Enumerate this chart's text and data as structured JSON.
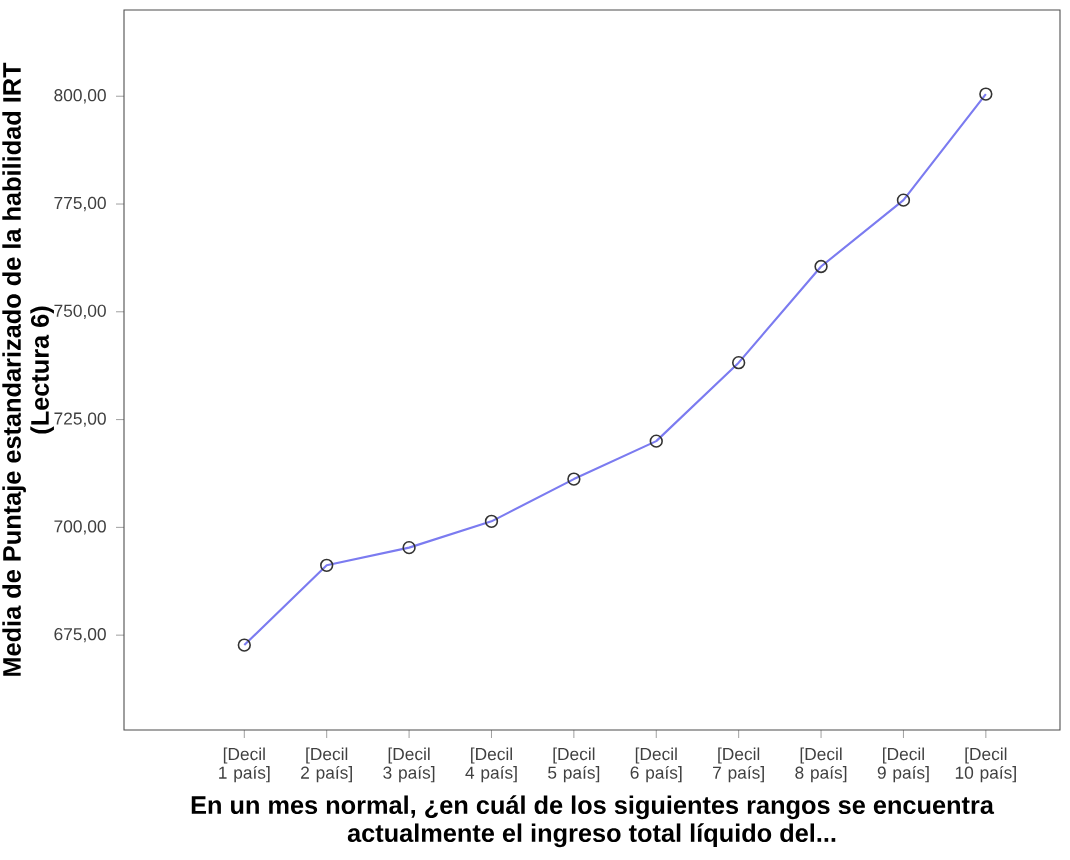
{
  "chart_data": {
    "type": "line",
    "xlabel": "En un mes normal, ¿en cuál de los siguientes rangos se encuentra actualmente el ingreso total líquido del...",
    "ylabel": "Media de Puntaje estandarizado de la habilidad IRT (Lectura 6)",
    "categories": [
      "[Decil 1 país]",
      "[Decil 2 país]",
      "[Decil 3 país]",
      "[Decil 4 país]",
      "[Decil 5 país]",
      "[Decil 6 país]",
      "[Decil 7 país]",
      "[Decil 8 país]",
      "[Decil 9 país]",
      "[Decil 10 país]"
    ],
    "series": [
      {
        "color": "#7b7bf0",
        "values": [
          672.7,
          691.2,
          695.3,
          701.4,
          711.2,
          720.0,
          738.2,
          760.5,
          775.9,
          800.5
        ]
      }
    ],
    "ylim": [
      653,
      820
    ],
    "yticks": [
      {
        "value": 675,
        "label": "675,00"
      },
      {
        "value": 700,
        "label": "700,00"
      },
      {
        "value": 725,
        "label": "725,00"
      },
      {
        "value": 750,
        "label": "750,00"
      },
      {
        "value": 775,
        "label": "775,00"
      },
      {
        "value": 800,
        "label": "800,00"
      }
    ],
    "marker": "circle"
  }
}
